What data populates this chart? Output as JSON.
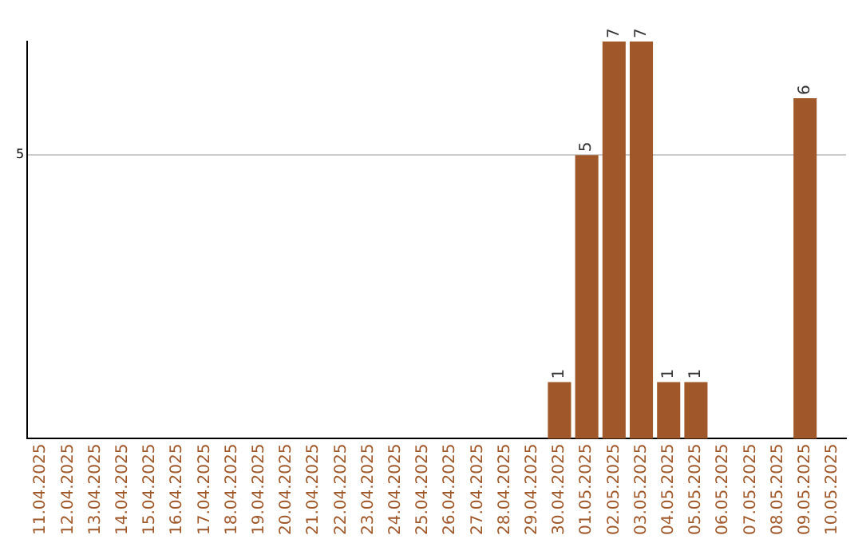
{
  "chart_data": {
    "type": "bar",
    "categories": [
      "11.04.2025",
      "12.04.2025",
      "13.04.2025",
      "14.04.2025",
      "15.04.2025",
      "16.04.2025",
      "17.04.2025",
      "18.04.2025",
      "19.04.2025",
      "20.04.2025",
      "21.04.2025",
      "22.04.2025",
      "23.04.2025",
      "24.04.2025",
      "25.04.2025",
      "26.04.2025",
      "27.04.2025",
      "28.04.2025",
      "29.04.2025",
      "30.04.2025",
      "01.05.2025",
      "02.05.2025",
      "03.05.2025",
      "04.05.2025",
      "05.05.2025",
      "06.05.2025",
      "07.05.2025",
      "08.05.2025",
      "09.05.2025",
      "10.05.2025"
    ],
    "values": [
      null,
      null,
      null,
      null,
      null,
      null,
      null,
      null,
      null,
      null,
      null,
      null,
      null,
      null,
      null,
      null,
      null,
      null,
      null,
      1,
      5,
      7,
      7,
      1,
      1,
      null,
      null,
      null,
      6,
      null
    ],
    "color": "#a0582a",
    "ylim": [
      0,
      7
    ],
    "yticks": [
      5
    ],
    "grid": "y",
    "data_labels": true,
    "legend": false
  }
}
